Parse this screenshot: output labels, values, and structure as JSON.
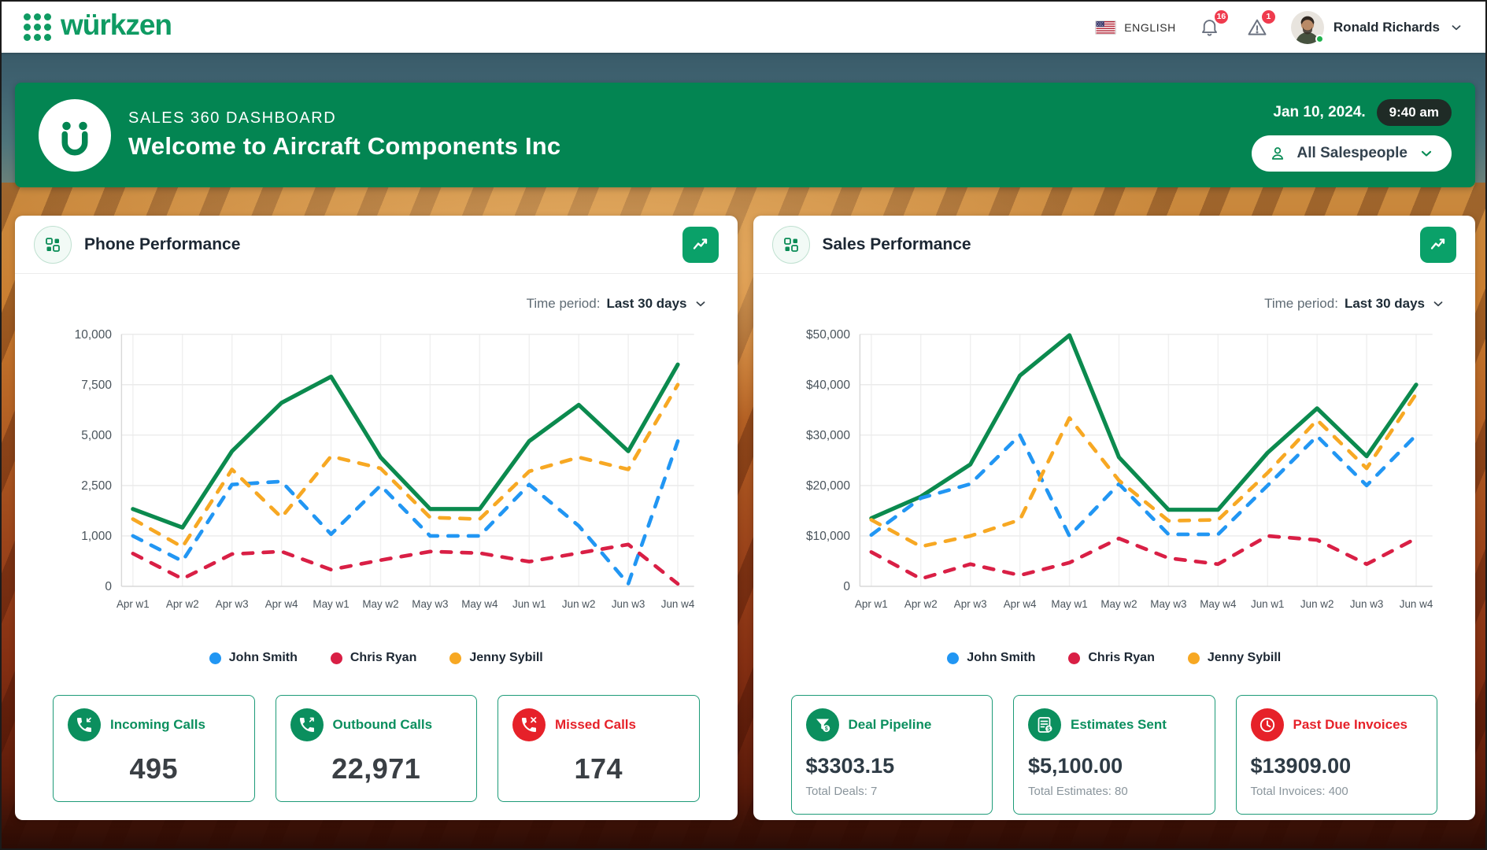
{
  "header": {
    "brand": "würkzen",
    "language": "ENGLISH",
    "notifications_count": "16",
    "alerts_count": "1",
    "user_name": "Ronald Richards"
  },
  "banner": {
    "logo_glyph": "Ü",
    "kicker": "SALES 360 DASHBOARD",
    "title": "Welcome to Aircraft Components Inc",
    "date": "Jan 10, 2024.",
    "time": "9:40 am",
    "salespeople_filter": "All Salespeople"
  },
  "colors": {
    "brand_green": "#0f9b63",
    "banner_green": "#038552",
    "accent_green": "#0aa169",
    "chart_green": "#0b8a4e",
    "legend_blue": "#2196f3",
    "legend_red": "#d91f45",
    "legend_yellow": "#f7a823",
    "stat_green": "#0b8f5e",
    "stat_red": "#e62129",
    "box_border": "#1d9b78",
    "badge_red": "#ef3b4e"
  },
  "phone_card": {
    "title": "Phone Performance",
    "time_period_label": "Time period:",
    "time_period_value": "Last 30 days",
    "stats": [
      {
        "icon": "phone-incoming-icon",
        "label": "Incoming Calls",
        "value": "495",
        "tone": "green"
      },
      {
        "icon": "phone-outgoing-icon",
        "label": "Outbound Calls",
        "value": "22,971",
        "tone": "green"
      },
      {
        "icon": "phone-missed-icon",
        "label": "Missed Calls",
        "value": "174",
        "tone": "red"
      }
    ]
  },
  "sales_card": {
    "title": "Sales Performance",
    "time_period_label": "Time period:",
    "time_period_value": "Last 30 days",
    "stats": [
      {
        "icon": "deal-pipeline-icon",
        "label": "Deal Pipeline",
        "value": "$3303.15",
        "subtext": "Total Deals: 7",
        "tone": "green"
      },
      {
        "icon": "estimates-sent-icon",
        "label": "Estimates Sent",
        "value": "$5,100.00",
        "subtext": "Total Estimates: 80",
        "tone": "green"
      },
      {
        "icon": "past-due-invoices-icon",
        "label": "Past Due Invoices",
        "value": "$13909.00",
        "subtext": "Total Invoices: 400",
        "tone": "red"
      }
    ]
  },
  "chart_data": [
    {
      "type": "line",
      "title": "Phone Performance",
      "categories": [
        "Apr w1",
        "Apr w2",
        "Apr w3",
        "Apr w4",
        "May w1",
        "May w2",
        "May w3",
        "May w4",
        "Jun w1",
        "Jun w2",
        "Jun w3",
        "Jun w4"
      ],
      "y_tick_labels": [
        "0",
        "1,000",
        "2,500",
        "5,000",
        "7,500",
        "10,000"
      ],
      "y_tick_values": [
        0,
        1000,
        2500,
        5000,
        7500,
        10000
      ],
      "grid": true,
      "legend_position": "bottom",
      "series": [
        {
          "name": "All salespeople total",
          "color": "#0b8a4e",
          "style": "solid",
          "in_legend": false,
          "values": [
            1800,
            1250,
            4200,
            6600,
            7900,
            3900,
            1800,
            1800,
            4700,
            6500,
            4200,
            8500
          ]
        },
        {
          "name": "John Smith",
          "color": "#2196f3",
          "style": "dashed",
          "in_legend": true,
          "values": [
            1000,
            500,
            2550,
            2700,
            1050,
            2500,
            1000,
            1000,
            2550,
            1300,
            50,
            4700
          ]
        },
        {
          "name": "Chris Ryan",
          "color": "#d91f45",
          "style": "dashed",
          "in_legend": true,
          "values": [
            650,
            150,
            640,
            690,
            330,
            520,
            690,
            660,
            490,
            660,
            830,
            50
          ]
        },
        {
          "name": "Jenny Sybill",
          "color": "#f7a823",
          "style": "dashed",
          "in_legend": true,
          "values": [
            1500,
            780,
            3300,
            1550,
            3950,
            3350,
            1550,
            1500,
            3200,
            3900,
            3300,
            7500
          ]
        }
      ]
    },
    {
      "type": "line",
      "title": "Sales Performance",
      "categories": [
        "Apr w1",
        "Apr w2",
        "Apr w3",
        "Apr w4",
        "May w1",
        "May w2",
        "May w3",
        "May w4",
        "Jun w1",
        "Jun w2",
        "Jun w3",
        "Jun w4"
      ],
      "y_tick_labels": [
        "0",
        "$10,000",
        "$20,000",
        "$30,000",
        "$40,000",
        "$50,000"
      ],
      "y_tick_values": [
        0,
        10000,
        20000,
        30000,
        40000,
        50000
      ],
      "grid": true,
      "legend_position": "bottom",
      "series": [
        {
          "name": "All salespeople total",
          "color": "#0b8a4e",
          "style": "solid",
          "in_legend": false,
          "values": [
            13500,
            17800,
            24200,
            41800,
            49800,
            25600,
            15200,
            15200,
            26500,
            35300,
            25800,
            40000
          ]
        },
        {
          "name": "John Smith",
          "color": "#2196f3",
          "style": "dashed",
          "in_legend": true,
          "values": [
            10200,
            17500,
            20300,
            30000,
            10000,
            20300,
            10300,
            10300,
            20000,
            29800,
            20000,
            30000
          ]
        },
        {
          "name": "Chris Ryan",
          "color": "#d91f45",
          "style": "dashed",
          "in_legend": true,
          "values": [
            6800,
            1500,
            4400,
            2200,
            4700,
            9500,
            5600,
            4400,
            10000,
            9200,
            4400,
            9500
          ]
        },
        {
          "name": "Jenny Sybill",
          "color": "#f7a823",
          "style": "dashed",
          "in_legend": true,
          "values": [
            13200,
            7900,
            10000,
            13200,
            33400,
            21000,
            13000,
            13200,
            22500,
            33000,
            23400,
            38200
          ]
        }
      ]
    }
  ]
}
